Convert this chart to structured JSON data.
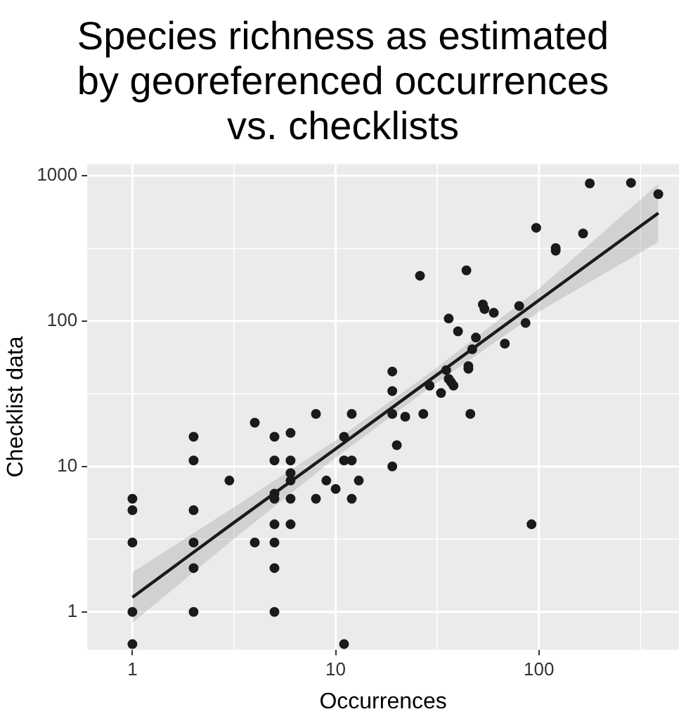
{
  "chart_data": {
    "type": "scatter",
    "title": "Species richness as estimated by georeferenced occurrences vs. checklists",
    "xlabel": "Occurrences",
    "ylabel": "Checklist data",
    "log": "xy",
    "grid": true,
    "legend": false,
    "xlim": [
      0.6,
      489
    ],
    "ylim": [
      0.55,
      1200
    ],
    "xticks": [
      1,
      10,
      100
    ],
    "yticks": [
      1,
      10,
      100,
      1000
    ],
    "series": [
      {
        "marker": "circle",
        "color": "#1a1a1a",
        "x": [
          1,
          1,
          1,
          1,
          1,
          2,
          2,
          2,
          2,
          2,
          2,
          3,
          4,
          4,
          5,
          5,
          5,
          5,
          5,
          5,
          5,
          5,
          6,
          6,
          6,
          6,
          6,
          6,
          8,
          8,
          9,
          10,
          11,
          11,
          11,
          12,
          12,
          12,
          13,
          19,
          19,
          19,
          19,
          20,
          22,
          27,
          29,
          33,
          46,
          92,
          26,
          35,
          36,
          36,
          37,
          38,
          40,
          44,
          45,
          45,
          47,
          49,
          53,
          54,
          60,
          68,
          80,
          86,
          97,
          121,
          121,
          165,
          178,
          284,
          387
        ],
        "values": [
          6,
          5,
          3,
          1,
          0.6,
          16,
          11,
          5,
          3,
          2,
          1,
          8,
          20,
          3,
          16,
          11,
          6.5,
          6,
          4,
          3,
          2,
          1,
          17,
          11,
          9,
          8,
          6,
          4,
          23,
          6,
          8,
          7,
          16,
          11,
          0.6,
          23,
          11,
          6,
          8,
          45,
          33,
          23,
          10,
          14,
          22,
          23,
          36,
          32,
          23,
          4,
          205,
          46,
          104,
          40,
          38,
          36,
          85,
          223,
          49,
          47,
          64,
          77,
          130,
          121,
          114,
          70,
          127,
          97,
          438,
          318,
          305,
          400,
          885,
          893,
          747
        ]
      },
      {
        "type": "line",
        "color": "#1a1a1a",
        "x": [
          1,
          3,
          10,
          30,
          100,
          387
        ],
        "values": [
          1.26,
          3.9,
          13.2,
          40.6,
          139,
          553
        ],
        "lower": [
          0.84,
          3.0,
          11.5,
          36,
          116,
          349
        ],
        "upper": [
          1.87,
          5.0,
          15.1,
          45.5,
          167,
          877
        ]
      }
    ]
  }
}
